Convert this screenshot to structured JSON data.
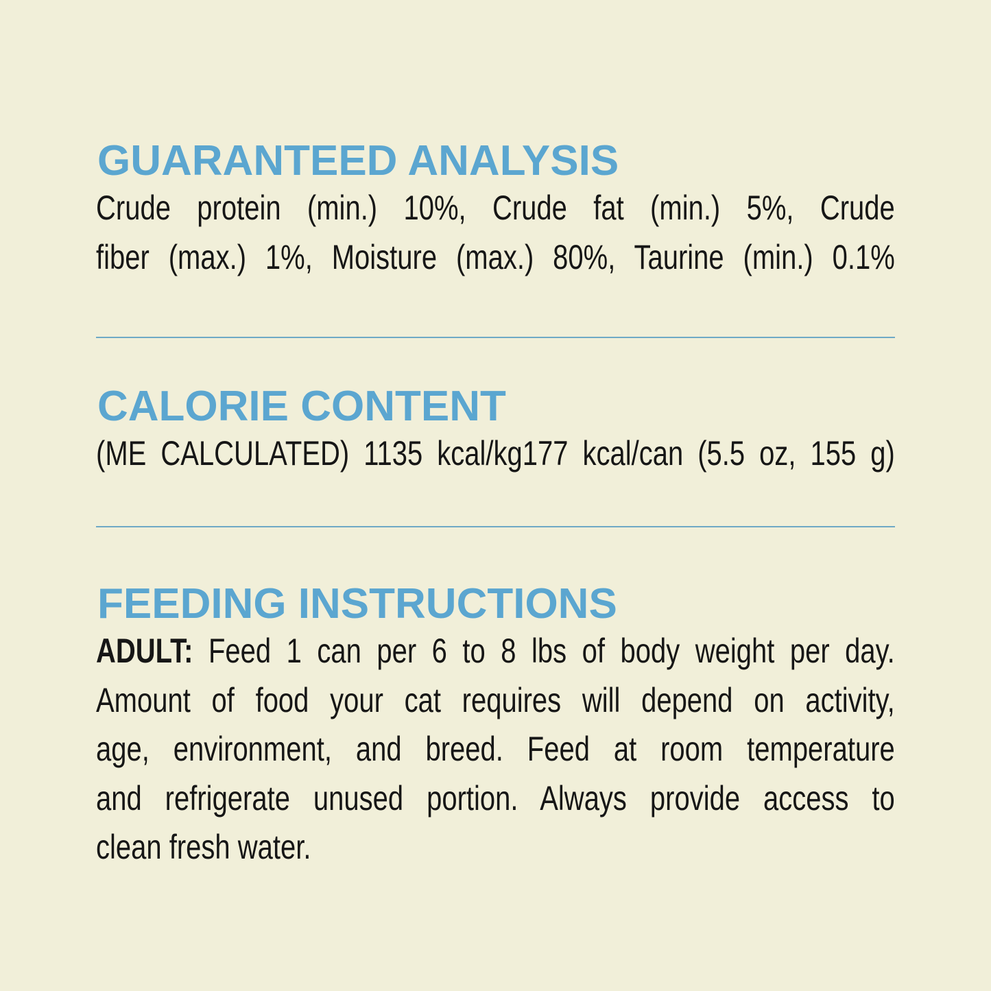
{
  "colors": {
    "background": "#f1efd9",
    "heading": "#5ba6d0",
    "divider": "#6fa9c6",
    "text": "#161616"
  },
  "guaranteed_analysis": {
    "title": "GUARANTEED ANALYSIS",
    "lines": [
      "Crude protein (min.) 10%, Crude fat (min.) 5%, Crude",
      "fiber (max.) 1%, Moisture (max.) 80%, Taurine (min.) 0.1%"
    ]
  },
  "calorie_content": {
    "title": "CALORIE CONTENT",
    "lines": [
      "(ME CALCULATED) 1135 kcal/kg177 kcal/can (5.5 oz, 155 g)"
    ]
  },
  "feeding_instructions": {
    "title": "FEEDING INSTRUCTIONS",
    "label": "ADULT:",
    "lines": [
      " Feed 1 can per 6 to 8 lbs of body weight per day.",
      "Amount of food your cat requires will depend on activity,",
      "age, environment, and breed. Feed at room temperature",
      "and refrigerate unused portion. Always provide access to",
      "clean fresh water."
    ]
  }
}
